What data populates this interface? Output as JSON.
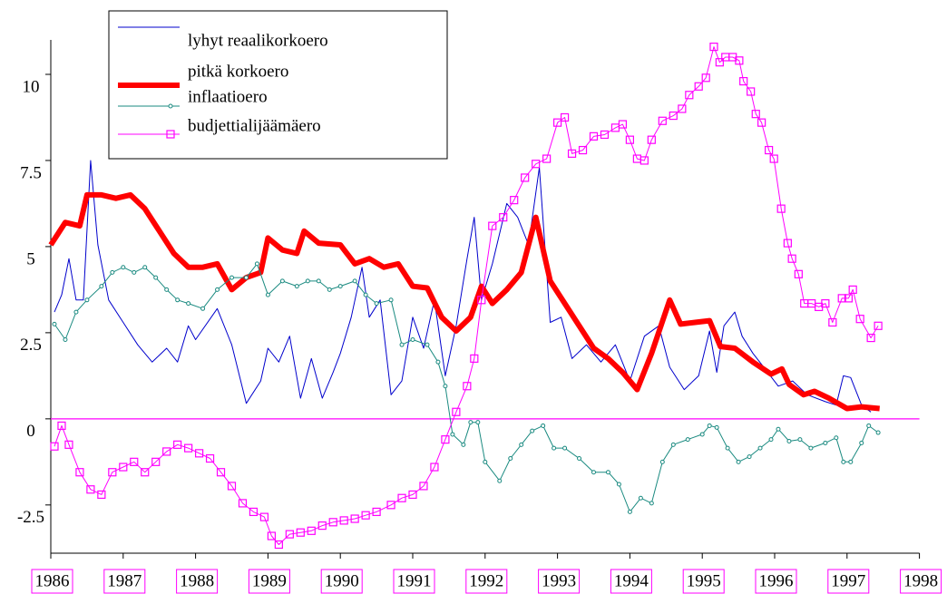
{
  "chart_data": {
    "type": "line",
    "xlim": [
      1986,
      1998
    ],
    "xticks": [
      1986,
      1987,
      1988,
      1989,
      1990,
      1991,
      1992,
      1993,
      1994,
      1995,
      1996,
      1997,
      1998
    ],
    "ylim": [
      -3.9,
      11
    ],
    "yticks": [
      -2.5,
      0,
      2.5,
      5,
      7.5,
      10
    ],
    "legend": "top-left",
    "zero_line": true,
    "series": [
      {
        "name": "lyhyt reaalikorkoero",
        "color": "#0000cc",
        "width": 1,
        "marker": "none",
        "x": [
          1986.05,
          1986.15,
          1986.25,
          1986.35,
          1986.45,
          1986.55,
          1986.65,
          1986.8,
          1987.0,
          1987.2,
          1987.4,
          1987.6,
          1987.75,
          1987.9,
          1988.0,
          1988.3,
          1988.5,
          1988.7,
          1988.9,
          1989.0,
          1989.15,
          1989.3,
          1989.45,
          1989.6,
          1989.75,
          1989.9,
          1990.0,
          1990.15,
          1990.3,
          1990.4,
          1990.55,
          1990.7,
          1990.85,
          1991.0,
          1991.15,
          1991.3,
          1991.45,
          1991.6,
          1991.75,
          1991.85,
          1991.95,
          1992.1,
          1992.3,
          1992.45,
          1992.6,
          1992.75,
          1992.9,
          1993.05,
          1993.2,
          1993.4,
          1993.6,
          1993.8,
          1994.0,
          1994.2,
          1994.4,
          1994.55,
          1994.75,
          1994.95,
          1995.1,
          1995.2,
          1995.3,
          1995.45,
          1995.55,
          1995.7,
          1995.85,
          1996.05,
          1996.25,
          1996.45,
          1996.7,
          1996.85,
          1996.95,
          1997.05,
          1997.2,
          1997.33
        ],
        "values": [
          3.1,
          3.6,
          4.65,
          3.45,
          3.45,
          7.5,
          5.05,
          3.45,
          2.8,
          2.15,
          1.65,
          2.05,
          1.65,
          2.7,
          2.3,
          3.2,
          2.15,
          0.45,
          1.1,
          2.05,
          1.65,
          2.4,
          0.6,
          1.75,
          0.6,
          1.35,
          1.9,
          2.95,
          4.4,
          2.95,
          3.45,
          0.7,
          1.1,
          2.95,
          2.05,
          3.45,
          1.25,
          2.7,
          4.65,
          5.85,
          3.45,
          4.5,
          6.25,
          5.85,
          5.05,
          7.3,
          2.8,
          2.95,
          1.75,
          2.15,
          1.65,
          2.15,
          1.1,
          2.4,
          2.7,
          1.5,
          0.85,
          1.25,
          2.55,
          1.35,
          2.7,
          3.1,
          2.4,
          1.9,
          1.5,
          0.95,
          1.1,
          0.7,
          0.5,
          0.4,
          1.25,
          1.2,
          0.4,
          0.2
        ]
      },
      {
        "name": "pitkä korkoero",
        "color": "#ff0000",
        "width": 6,
        "marker": "none",
        "x": [
          1986.0,
          1986.2,
          1986.4,
          1986.5,
          1986.7,
          1986.9,
          1987.1,
          1987.3,
          1987.5,
          1987.7,
          1987.9,
          1988.1,
          1988.3,
          1988.5,
          1988.7,
          1988.9,
          1989.0,
          1989.2,
          1989.4,
          1989.5,
          1989.7,
          1990.0,
          1990.2,
          1990.4,
          1990.6,
          1990.8,
          1991.0,
          1991.2,
          1991.4,
          1991.6,
          1991.8,
          1991.95,
          1992.1,
          1992.3,
          1992.5,
          1992.7,
          1992.9,
          1993.1,
          1993.3,
          1993.5,
          1993.7,
          1993.9,
          1994.1,
          1994.3,
          1994.55,
          1994.7,
          1994.9,
          1995.1,
          1995.25,
          1995.45,
          1995.7,
          1995.95,
          1996.1,
          1996.2,
          1996.4,
          1996.55,
          1996.75,
          1997.0,
          1997.2,
          1997.45
        ],
        "values": [
          5.05,
          5.7,
          5.6,
          6.5,
          6.5,
          6.4,
          6.5,
          6.1,
          5.45,
          4.8,
          4.4,
          4.4,
          4.5,
          3.75,
          4.1,
          4.25,
          5.25,
          4.9,
          4.8,
          5.45,
          5.1,
          5.05,
          4.5,
          4.65,
          4.4,
          4.5,
          3.85,
          3.8,
          2.95,
          2.55,
          2.95,
          3.85,
          3.35,
          3.75,
          4.25,
          5.85,
          4.0,
          3.35,
          2.7,
          2.05,
          1.75,
          1.35,
          0.85,
          1.9,
          3.45,
          2.75,
          2.8,
          2.85,
          2.1,
          2.05,
          1.65,
          1.3,
          1.45,
          1.0,
          0.7,
          0.8,
          0.6,
          0.3,
          0.35,
          0.3
        ]
      },
      {
        "name": "inflaatioero",
        "color": "#1a8a80",
        "width": 1,
        "marker": "circle",
        "x": [
          1986.05,
          1986.2,
          1986.35,
          1986.5,
          1986.7,
          1986.85,
          1987.0,
          1987.15,
          1987.3,
          1987.45,
          1987.6,
          1987.75,
          1987.9,
          1988.1,
          1988.3,
          1988.5,
          1988.7,
          1988.85,
          1989.0,
          1989.2,
          1989.4,
          1989.55,
          1989.7,
          1989.85,
          1990.0,
          1990.2,
          1990.35,
          1990.5,
          1990.7,
          1990.85,
          1991.0,
          1991.2,
          1991.35,
          1991.45,
          1991.55,
          1991.7,
          1991.8,
          1991.9,
          1992.0,
          1992.2,
          1992.35,
          1992.5,
          1992.65,
          1992.8,
          1992.95,
          1993.1,
          1993.3,
          1993.5,
          1993.7,
          1993.85,
          1994.0,
          1994.15,
          1994.3,
          1994.45,
          1994.6,
          1994.8,
          1995.0,
          1995.1,
          1995.2,
          1995.35,
          1995.5,
          1995.65,
          1995.8,
          1995.95,
          1996.05,
          1996.2,
          1996.35,
          1996.5,
          1996.7,
          1996.85,
          1996.95,
          1997.05,
          1997.2,
          1997.3,
          1997.43
        ],
        "values": [
          2.75,
          2.3,
          3.1,
          3.45,
          3.85,
          4.25,
          4.4,
          4.25,
          4.4,
          4.1,
          3.75,
          3.45,
          3.35,
          3.2,
          3.75,
          4.1,
          4.1,
          4.5,
          3.6,
          4.0,
          3.85,
          4.0,
          4.0,
          3.75,
          3.85,
          4.0,
          3.6,
          3.35,
          3.45,
          2.15,
          2.3,
          2.15,
          1.65,
          0.95,
          -0.45,
          -0.75,
          -0.1,
          -0.1,
          -1.25,
          -1.8,
          -1.15,
          -0.75,
          -0.35,
          -0.2,
          -0.85,
          -0.85,
          -1.15,
          -1.55,
          -1.55,
          -1.9,
          -2.7,
          -2.3,
          -2.45,
          -1.25,
          -0.75,
          -0.6,
          -0.45,
          -0.2,
          -0.25,
          -0.85,
          -1.25,
          -1.1,
          -0.85,
          -0.6,
          -0.3,
          -0.65,
          -0.6,
          -0.85,
          -0.7,
          -0.55,
          -1.25,
          -1.25,
          -0.7,
          -0.2,
          -0.4
        ]
      },
      {
        "name": "budjettialijäämäero",
        "color": "#ff00ff",
        "width": 1,
        "marker": "square",
        "x": [
          1986.05,
          1986.15,
          1986.25,
          1986.4,
          1986.55,
          1986.7,
          1986.85,
          1987.0,
          1987.15,
          1987.3,
          1987.45,
          1987.6,
          1987.75,
          1987.9,
          1988.05,
          1988.2,
          1988.35,
          1988.5,
          1988.65,
          1988.8,
          1988.95,
          1989.05,
          1989.15,
          1989.3,
          1989.45,
          1989.6,
          1989.75,
          1989.9,
          1990.05,
          1990.2,
          1990.35,
          1990.5,
          1990.7,
          1990.85,
          1991.0,
          1991.15,
          1991.3,
          1991.45,
          1991.6,
          1991.75,
          1991.85,
          1991.95,
          1992.1,
          1992.25,
          1992.4,
          1992.55,
          1992.7,
          1992.85,
          1993.0,
          1993.1,
          1993.2,
          1993.35,
          1993.5,
          1993.65,
          1993.8,
          1993.9,
          1994.0,
          1994.1,
          1994.2,
          1994.3,
          1994.45,
          1994.6,
          1994.72,
          1994.82,
          1994.95,
          1995.05,
          1995.16,
          1995.24,
          1995.32,
          1995.42,
          1995.51,
          1995.57,
          1995.67,
          1995.74,
          1995.82,
          1995.92,
          1995.99,
          1996.09,
          1996.18,
          1996.24,
          1996.33,
          1996.41,
          1996.51,
          1996.61,
          1996.7,
          1996.8,
          1996.93,
          1997.02,
          1997.08,
          1997.18,
          1997.33,
          1997.43
        ],
        "values": [
          -0.8,
          -0.2,
          -0.75,
          -1.55,
          -2.05,
          -2.2,
          -1.55,
          -1.4,
          -1.25,
          -1.55,
          -1.25,
          -0.95,
          -0.75,
          -0.85,
          -1.0,
          -1.15,
          -1.55,
          -1.95,
          -2.45,
          -2.7,
          -2.85,
          -3.4,
          -3.65,
          -3.35,
          -3.3,
          -3.25,
          -3.1,
          -3.0,
          -2.95,
          -2.9,
          -2.8,
          -2.7,
          -2.5,
          -2.3,
          -2.2,
          -1.95,
          -1.4,
          -0.6,
          0.2,
          0.95,
          1.75,
          3.45,
          5.6,
          5.85,
          6.35,
          7.0,
          7.4,
          7.55,
          8.6,
          8.75,
          7.7,
          7.8,
          8.2,
          8.25,
          8.45,
          8.55,
          8.1,
          7.55,
          7.5,
          8.1,
          8.65,
          8.8,
          9.0,
          9.4,
          9.65,
          9.9,
          10.8,
          10.35,
          10.5,
          10.5,
          10.4,
          9.8,
          9.5,
          8.85,
          8.6,
          7.8,
          7.55,
          6.1,
          5.1,
          4.65,
          4.2,
          3.35,
          3.35,
          3.25,
          3.35,
          2.8,
          3.5,
          3.5,
          3.75,
          2.9,
          2.35,
          2.7
        ]
      }
    ]
  }
}
